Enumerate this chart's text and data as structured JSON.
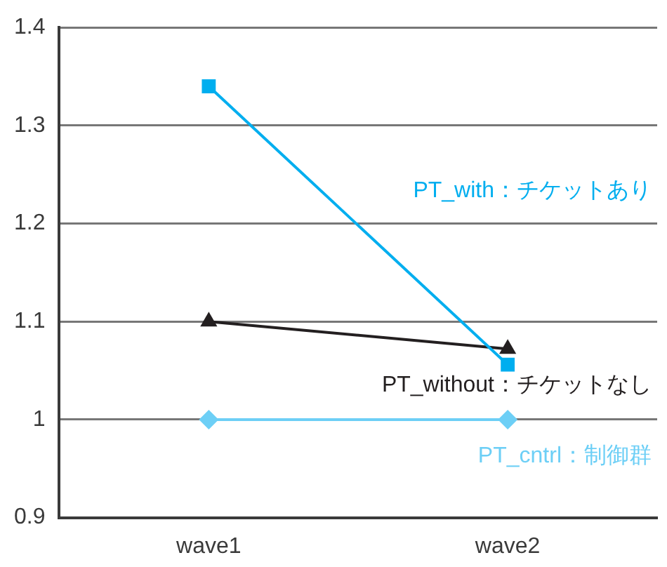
{
  "chart_data": {
    "type": "line",
    "categories": [
      "wave1",
      "wave2"
    ],
    "series": [
      {
        "name": "PT_with：チケットあり",
        "color": "#00aeef",
        "marker": "square",
        "values": [
          1.34,
          1.056
        ]
      },
      {
        "name": "PT_without：チケットなし",
        "color": "#231f20",
        "marker": "triangle",
        "values": [
          1.1,
          1.072
        ]
      },
      {
        "name": "PT_cntrl：制御群",
        "color": "#6dcff6",
        "marker": "diamond",
        "values": [
          1.0,
          1.0
        ]
      }
    ],
    "ylim": [
      0.9,
      1.4
    ],
    "yticks": [
      0.9,
      1,
      1.1,
      1.2,
      1.3,
      1.4
    ],
    "grid": "y",
    "legend": false,
    "line_style": "solid"
  }
}
